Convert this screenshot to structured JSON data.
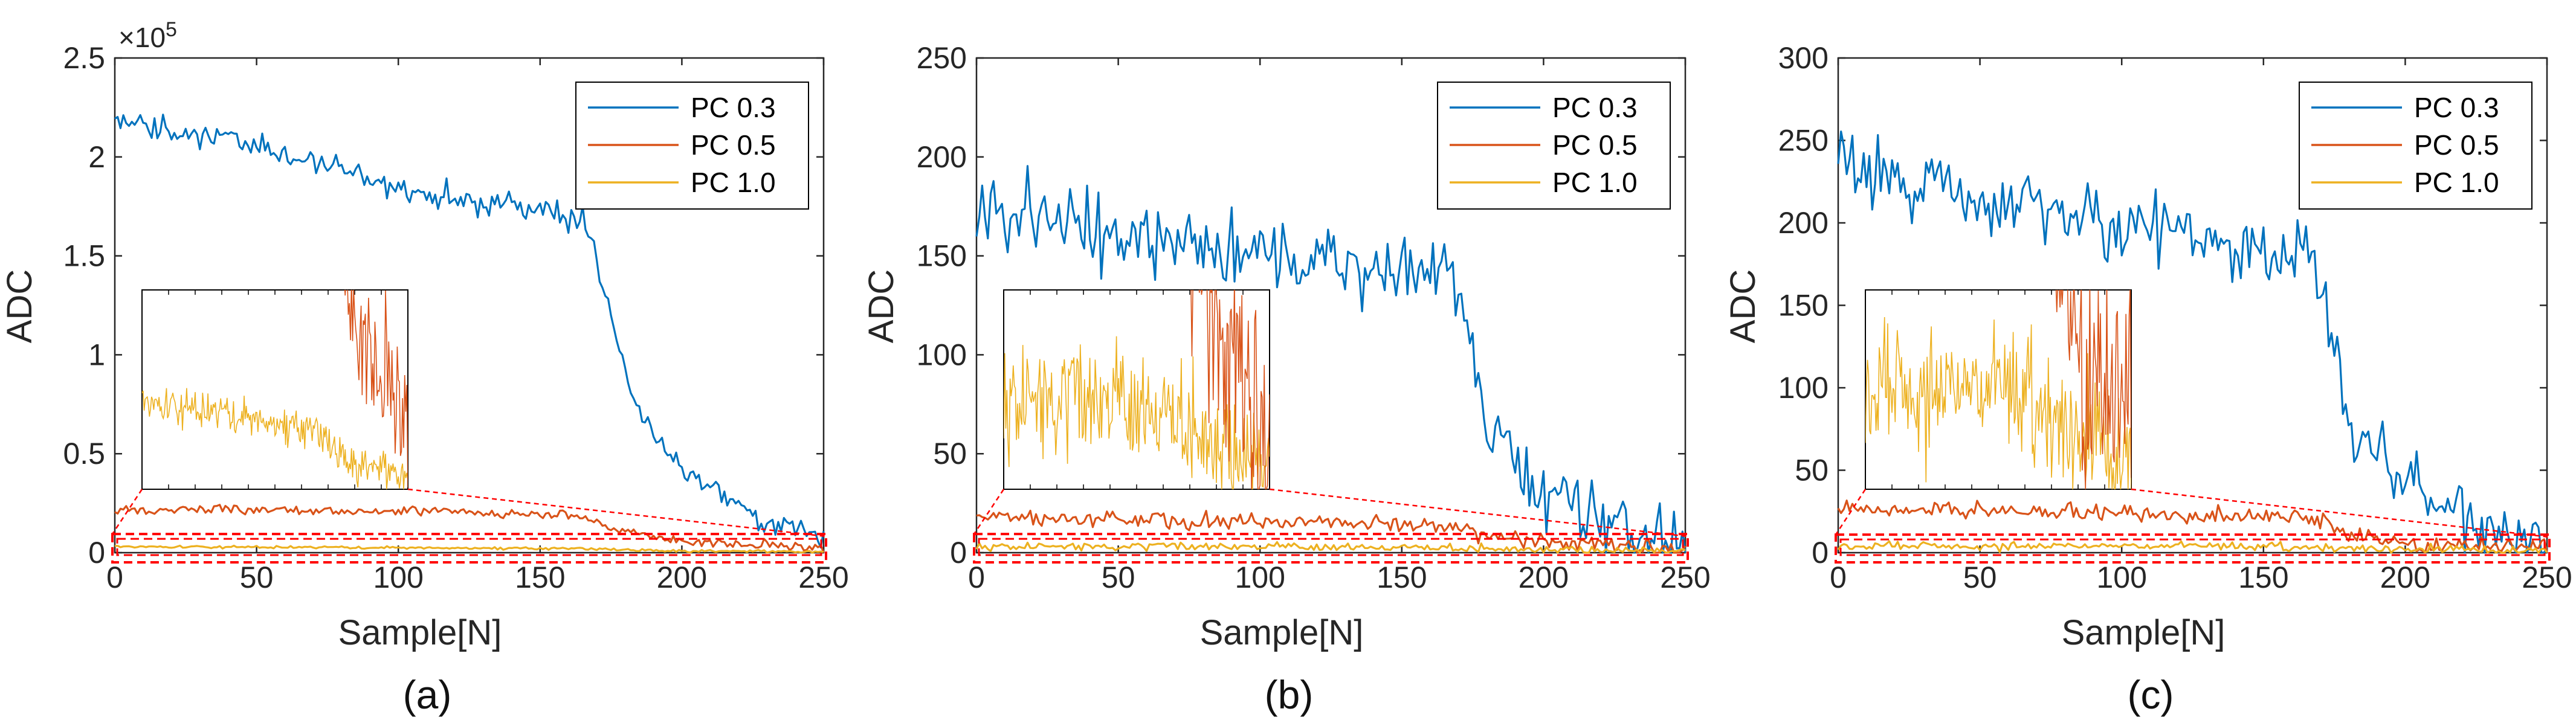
{
  "figure": {
    "colors": {
      "pc03": "#0072BD",
      "pc05": "#D95319",
      "pc10": "#EDB120",
      "zoom_box": "#FF0000",
      "axis": "#262626"
    }
  },
  "chart_data": [
    {
      "type": "line",
      "panel_label": "(a)",
      "xlabel": "Sample[N]",
      "ylabel": "ADC",
      "xlim": [
        0,
        250
      ],
      "ylim": [
        0,
        250000
      ],
      "xticks": [
        0,
        50,
        100,
        150,
        200,
        250
      ],
      "xtick_labels": [
        "0",
        "50",
        "100",
        "150",
        "200",
        "250"
      ],
      "yticks": [
        0,
        50000,
        100000,
        150000,
        200000,
        250000
      ],
      "ytick_labels": [
        "0",
        "0.5",
        "1",
        "1.5",
        "2",
        "2.5"
      ],
      "y_exponent_label": "×10",
      "y_exponent_power": "5",
      "legend_position": "top-right",
      "series": [
        {
          "name": "PC 0.3",
          "color": "#0072BD",
          "profile": [
            [
              0,
              218000
            ],
            [
              50,
              205000
            ],
            [
              100,
              185000
            ],
            [
              150,
              172000
            ],
            [
              165,
              168000
            ],
            [
              168,
              160000
            ],
            [
              175,
              120000
            ],
            [
              185,
              70000
            ],
            [
              200,
              42000
            ],
            [
              225,
              20000
            ],
            [
              250,
              8000
            ]
          ],
          "noise": 5000
        },
        {
          "name": "PC 0.5",
          "color": "#D95319",
          "profile": [
            [
              0,
              22000
            ],
            [
              100,
              21000
            ],
            [
              165,
              19000
            ],
            [
              175,
              12000
            ],
            [
              200,
              6000
            ],
            [
              250,
              2000
            ]
          ],
          "noise": 1800
        },
        {
          "name": "PC 1.0",
          "color": "#EDB120",
          "profile": [
            [
              0,
              3000
            ],
            [
              100,
              2500
            ],
            [
              165,
              2000
            ],
            [
              200,
              900
            ],
            [
              250,
              400
            ]
          ],
          "noise": 500
        }
      ],
      "inset": {
        "x_range": [
          0,
          250
        ],
        "y_range": [
          0,
          7000
        ]
      }
    },
    {
      "type": "line",
      "panel_label": "(b)",
      "xlabel": "Sample[N]",
      "ylabel": "ADC",
      "xlim": [
        0,
        250
      ],
      "ylim": [
        0,
        250
      ],
      "xticks": [
        0,
        50,
        100,
        150,
        200,
        250
      ],
      "xtick_labels": [
        "0",
        "50",
        "100",
        "150",
        "200",
        "250"
      ],
      "yticks": [
        0,
        50,
        100,
        150,
        200,
        250
      ],
      "ytick_labels": [
        "0",
        "50",
        "100",
        "150",
        "200",
        "250"
      ],
      "legend_position": "top-right",
      "series": [
        {
          "name": "PC 0.3",
          "color": "#0072BD",
          "profile": [
            [
              0,
              178
            ],
            [
              50,
              160
            ],
            [
              100,
              150
            ],
            [
              150,
              140
            ],
            [
              168,
              138
            ],
            [
              172,
              120
            ],
            [
              180,
              60
            ],
            [
              200,
              30
            ],
            [
              225,
              12
            ],
            [
              250,
              6
            ]
          ],
          "noise": 14
        },
        {
          "name": "PC 0.5",
          "color": "#D95319",
          "profile": [
            [
              0,
              18
            ],
            [
              100,
              16
            ],
            [
              168,
              14
            ],
            [
              180,
              8
            ],
            [
              200,
              5
            ],
            [
              250,
              2
            ]
          ],
          "noise": 3
        },
        {
          "name": "PC 1.0",
          "color": "#EDB120",
          "profile": [
            [
              0,
              3
            ],
            [
              100,
              3
            ],
            [
              168,
              2.5
            ],
            [
              200,
              1.5
            ],
            [
              250,
              1
            ]
          ],
          "noise": 1.5
        }
      ],
      "inset": {
        "x_range": [
          0,
          250
        ],
        "y_range": [
          0,
          7
        ]
      }
    },
    {
      "type": "line",
      "panel_label": "(c)",
      "xlabel": "Sample[N]",
      "ylabel": "ADC",
      "xlim": [
        0,
        250
      ],
      "ylim": [
        0,
        300
      ],
      "xticks": [
        0,
        50,
        100,
        150,
        200,
        250
      ],
      "xtick_labels": [
        "0",
        "50",
        "100",
        "150",
        "200",
        "250"
      ],
      "yticks": [
        0,
        50,
        100,
        150,
        200,
        250,
        300
      ],
      "ytick_labels": [
        "0",
        "50",
        "100",
        "150",
        "200",
        "250",
        "300"
      ],
      "legend_position": "top-right",
      "series": [
        {
          "name": "PC 0.3",
          "color": "#0072BD",
          "profile": [
            [
              0,
              240
            ],
            [
              50,
              215
            ],
            [
              100,
              200
            ],
            [
              150,
              185
            ],
            [
              168,
              180
            ],
            [
              172,
              160
            ],
            [
              180,
              80
            ],
            [
              200,
              40
            ],
            [
              225,
              15
            ],
            [
              250,
              8
            ]
          ],
          "noise": 16
        },
        {
          "name": "PC 0.5",
          "color": "#D95319",
          "profile": [
            [
              0,
              27
            ],
            [
              100,
              24
            ],
            [
              168,
              22
            ],
            [
              180,
              12
            ],
            [
              200,
              6
            ],
            [
              250,
              3
            ]
          ],
          "noise": 4
        },
        {
          "name": "PC 1.0",
          "color": "#EDB120",
          "profile": [
            [
              0,
              4
            ],
            [
              100,
              4
            ],
            [
              168,
              3.5
            ],
            [
              200,
              2
            ],
            [
              250,
              1
            ]
          ],
          "noise": 2
        }
      ],
      "inset": {
        "x_range": [
          0,
          250
        ],
        "y_range": [
          0,
          8
        ]
      }
    }
  ]
}
